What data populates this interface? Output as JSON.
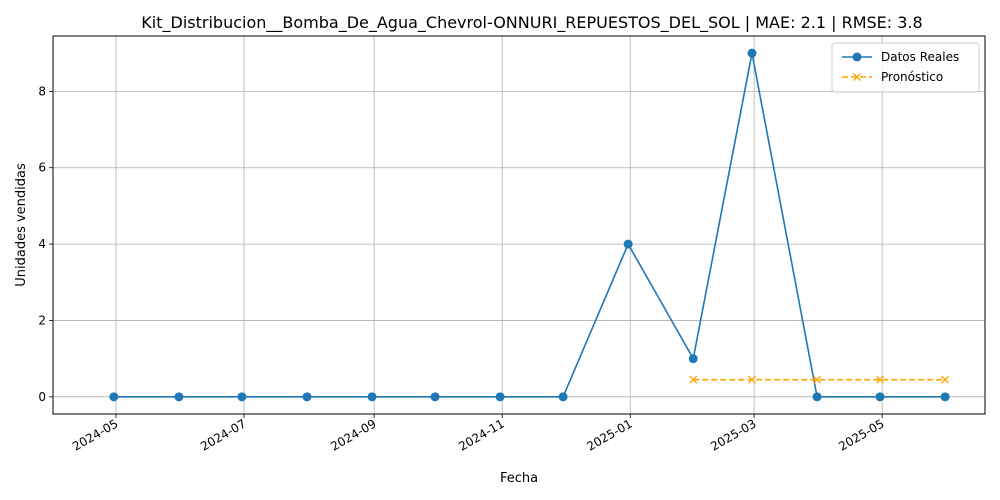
{
  "chart_data": {
    "type": "line",
    "title": "Kit_Distribucion__Bomba_De_Agua_Chevrol-ONNURI_REPUESTOS_DEL_SOL | MAE: 2.1 | RMSE: 3.8",
    "xlabel": "Fecha",
    "ylabel": "Unidades vendidas",
    "x_tick_labels": [
      "2024-05",
      "2024-07",
      "2024-09",
      "2024-11",
      "2025-01",
      "2025-03",
      "2025-05"
    ],
    "y_ticks": [
      0,
      2,
      4,
      6,
      8
    ],
    "xlim": [
      "2024-04-01",
      "2025-06-19"
    ],
    "ylim": [
      -0.45,
      9.45
    ],
    "grid": true,
    "legend_position": "top-right",
    "series": [
      {
        "name": "Datos Reales",
        "color": "#1f77b4",
        "style": "solid",
        "marker": "circle",
        "points": [
          {
            "x": "2024-04-30",
            "y": 0
          },
          {
            "x": "2024-05-31",
            "y": 0
          },
          {
            "x": "2024-06-30",
            "y": 0
          },
          {
            "x": "2024-07-31",
            "y": 0
          },
          {
            "x": "2024-08-31",
            "y": 0
          },
          {
            "x": "2024-09-30",
            "y": 0
          },
          {
            "x": "2024-10-31",
            "y": 0
          },
          {
            "x": "2024-11-30",
            "y": 0
          },
          {
            "x": "2024-12-31",
            "y": 4
          },
          {
            "x": "2025-01-31",
            "y": 1
          },
          {
            "x": "2025-02-28",
            "y": 9
          },
          {
            "x": "2025-03-31",
            "y": 0
          },
          {
            "x": "2025-04-30",
            "y": 0
          },
          {
            "x": "2025-05-31",
            "y": 0
          }
        ]
      },
      {
        "name": "Pronóstico",
        "color": "#ffa500",
        "style": "dashed",
        "marker": "x",
        "points": [
          {
            "x": "2025-01-31",
            "y": 0.45
          },
          {
            "x": "2025-02-28",
            "y": 0.45
          },
          {
            "x": "2025-03-31",
            "y": 0.45
          },
          {
            "x": "2025-04-30",
            "y": 0.45
          },
          {
            "x": "2025-05-31",
            "y": 0.45
          }
        ]
      }
    ]
  }
}
